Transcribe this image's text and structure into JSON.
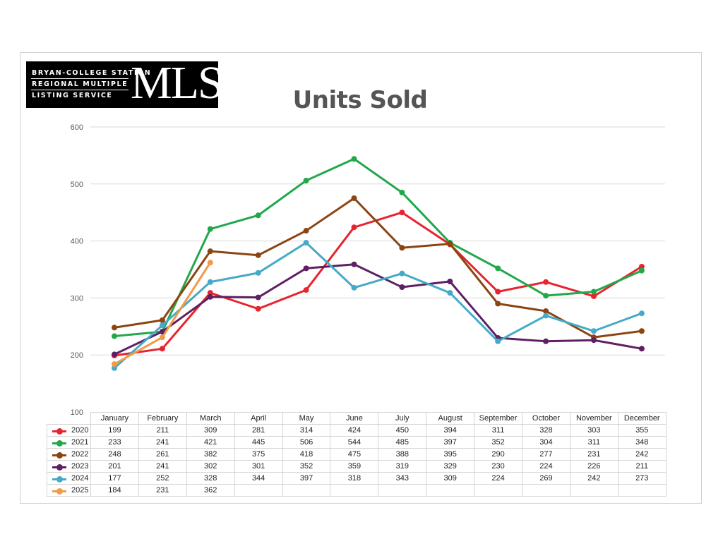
{
  "title": "Units Sold",
  "logo": {
    "lines": [
      "BRYAN-COLLEGE STATION",
      "REGIONAL MULTIPLE",
      "LISTING SERVICE"
    ],
    "mark": "MLS"
  },
  "chart_data": {
    "type": "line",
    "title": "Units Sold",
    "xlabel": "",
    "ylabel": "",
    "ylim": [
      100,
      600
    ],
    "yticks": [
      100,
      200,
      300,
      400,
      500,
      600
    ],
    "grid": true,
    "legend": "data-table",
    "categories": [
      "January",
      "February",
      "March",
      "April",
      "May",
      "June",
      "July",
      "August",
      "September",
      "October",
      "November",
      "December"
    ],
    "series": [
      {
        "name": "2020",
        "color": "#e8242e",
        "values": [
          199,
          211,
          309,
          281,
          314,
          424,
          450,
          394,
          311,
          328,
          303,
          355
        ]
      },
      {
        "name": "2021",
        "color": "#21a84a",
        "values": [
          233,
          241,
          421,
          445,
          506,
          544,
          485,
          397,
          352,
          304,
          311,
          348
        ]
      },
      {
        "name": "2022",
        "color": "#8b4513",
        "values": [
          248,
          261,
          382,
          375,
          418,
          475,
          388,
          395,
          290,
          277,
          231,
          242
        ]
      },
      {
        "name": "2023",
        "color": "#5e1f63",
        "values": [
          201,
          241,
          302,
          301,
          352,
          359,
          319,
          329,
          230,
          224,
          226,
          211
        ]
      },
      {
        "name": "2024",
        "color": "#45aac8",
        "values": [
          177,
          252,
          328,
          344,
          397,
          318,
          343,
          309,
          224,
          269,
          242,
          273
        ]
      },
      {
        "name": "2025",
        "color": "#f39a47",
        "values": [
          184,
          231,
          362,
          null,
          null,
          null,
          null,
          null,
          null,
          null,
          null,
          null
        ]
      }
    ]
  }
}
